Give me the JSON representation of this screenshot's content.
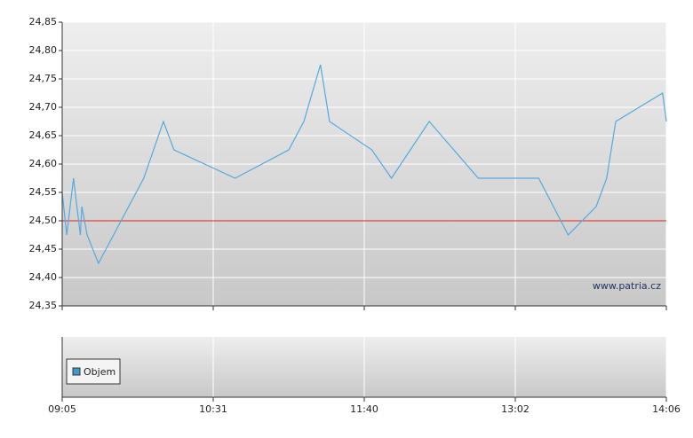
{
  "chart_data": {
    "type": "line",
    "x": [
      0,
      0.6,
      1.5,
      2.4,
      2.6,
      3.3,
      4.8,
      10.8,
      13.4,
      14.8,
      22.9,
      30,
      32,
      34.2,
      35.4,
      41,
      43.6,
      48.6,
      55.1,
      63.1,
      67,
      70.7,
      72.1,
      73.3,
      79.5,
      80
    ],
    "series": [
      {
        "color": "#55aadd",
        "values": [
          24.55,
          24.475,
          24.575,
          24.475,
          24.525,
          24.475,
          24.425,
          24.575,
          24.675,
          24.625,
          24.575,
          24.625,
          24.675,
          24.775,
          24.675,
          24.625,
          24.575,
          24.675,
          24.575,
          24.575,
          24.475,
          24.525,
          24.575,
          24.675,
          24.725,
          24.675
        ]
      }
    ],
    "xlim": [
      0,
      80
    ],
    "xticks": [
      {
        "value": 0,
        "label": "09:05"
      },
      {
        "value": 20,
        "label": "10:31"
      },
      {
        "value": 40,
        "label": "11:40"
      },
      {
        "value": 60,
        "label": "13:02"
      },
      {
        "value": 80,
        "label": "14:06"
      }
    ],
    "ylim": [
      24.35,
      24.85
    ],
    "yticks": [
      {
        "value": 24.35,
        "label": "24,35"
      },
      {
        "value": 24.4,
        "label": "24,40"
      },
      {
        "value": 24.45,
        "label": "24,45"
      },
      {
        "value": 24.5,
        "label": "24,50"
      },
      {
        "value": 24.55,
        "label": "24,55"
      },
      {
        "value": 24.6,
        "label": "24,60"
      },
      {
        "value": 24.65,
        "label": "24,65"
      },
      {
        "value": 24.7,
        "label": "24,70"
      },
      {
        "value": 24.75,
        "label": "24,75"
      },
      {
        "value": 24.8,
        "label": "24,80"
      },
      {
        "value": 24.85,
        "label": "24,85"
      }
    ],
    "reference_line": {
      "value": 24.5,
      "color": "#dd2222"
    },
    "grid": true,
    "watermark": "www.patria.cz",
    "volume_legend": {
      "name": "Objem",
      "color": "#4499cc"
    }
  }
}
